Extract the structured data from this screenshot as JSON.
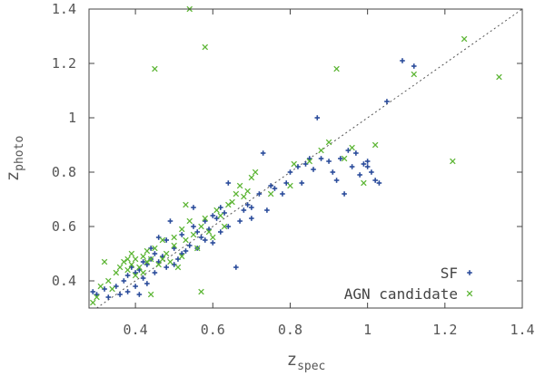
{
  "chart_data": {
    "type": "scatter",
    "xlabel": "z",
    "xlabel_sub": "spec",
    "ylabel": "z",
    "ylabel_sub": "photo",
    "xlim": [
      0.28,
      1.4
    ],
    "ylim": [
      0.3,
      1.4
    ],
    "xticks": [
      "0.4",
      "0.6",
      "0.8",
      "1",
      "1.2",
      "1.4"
    ],
    "yticks": [
      "0.4",
      "0.6",
      "0.8",
      "1",
      "1.2",
      "1.4"
    ],
    "grid": false,
    "reference_line": "y = x (dotted)",
    "legend_position": "bottom-right",
    "colors": {
      "SF": "#2b4c9b",
      "AGN candidate": "#5cb534",
      "reference": "#555555"
    },
    "series": [
      {
        "name": "SF",
        "marker": "plus",
        "points": [
          [
            0.29,
            0.36
          ],
          [
            0.3,
            0.35
          ],
          [
            0.32,
            0.37
          ],
          [
            0.33,
            0.34
          ],
          [
            0.35,
            0.38
          ],
          [
            0.36,
            0.35
          ],
          [
            0.37,
            0.4
          ],
          [
            0.38,
            0.42
          ],
          [
            0.38,
            0.36
          ],
          [
            0.39,
            0.45
          ],
          [
            0.4,
            0.43
          ],
          [
            0.4,
            0.38
          ],
          [
            0.41,
            0.44
          ],
          [
            0.41,
            0.35
          ],
          [
            0.42,
            0.47
          ],
          [
            0.42,
            0.41
          ],
          [
            0.43,
            0.46
          ],
          [
            0.43,
            0.39
          ],
          [
            0.44,
            0.48
          ],
          [
            0.44,
            0.52
          ],
          [
            0.45,
            0.5
          ],
          [
            0.45,
            0.43
          ],
          [
            0.46,
            0.47
          ],
          [
            0.46,
            0.56
          ],
          [
            0.47,
            0.49
          ],
          [
            0.48,
            0.55
          ],
          [
            0.48,
            0.45
          ],
          [
            0.49,
            0.62
          ],
          [
            0.5,
            0.52
          ],
          [
            0.5,
            0.46
          ],
          [
            0.51,
            0.48
          ],
          [
            0.52,
            0.5
          ],
          [
            0.52,
            0.57
          ],
          [
            0.53,
            0.51
          ],
          [
            0.54,
            0.53
          ],
          [
            0.55,
            0.6
          ],
          [
            0.55,
            0.67
          ],
          [
            0.56,
            0.58
          ],
          [
            0.56,
            0.52
          ],
          [
            0.57,
            0.56
          ],
          [
            0.58,
            0.55
          ],
          [
            0.58,
            0.62
          ],
          [
            0.59,
            0.59
          ],
          [
            0.6,
            0.54
          ],
          [
            0.6,
            0.64
          ],
          [
            0.61,
            0.63
          ],
          [
            0.62,
            0.58
          ],
          [
            0.62,
            0.67
          ],
          [
            0.63,
            0.65
          ],
          [
            0.64,
            0.76
          ],
          [
            0.64,
            0.6
          ],
          [
            0.66,
            0.45
          ],
          [
            0.67,
            0.62
          ],
          [
            0.68,
            0.66
          ],
          [
            0.69,
            0.68
          ],
          [
            0.7,
            0.67
          ],
          [
            0.7,
            0.63
          ],
          [
            0.72,
            0.72
          ],
          [
            0.73,
            0.87
          ],
          [
            0.74,
            0.66
          ],
          [
            0.75,
            0.75
          ],
          [
            0.76,
            0.74
          ],
          [
            0.78,
            0.72
          ],
          [
            0.79,
            0.76
          ],
          [
            0.8,
            0.8
          ],
          [
            0.82,
            0.82
          ],
          [
            0.83,
            0.76
          ],
          [
            0.84,
            0.83
          ],
          [
            0.85,
            0.85
          ],
          [
            0.86,
            0.81
          ],
          [
            0.87,
            1.0
          ],
          [
            0.88,
            0.85
          ],
          [
            0.9,
            0.84
          ],
          [
            0.91,
            0.8
          ],
          [
            0.92,
            0.77
          ],
          [
            0.93,
            0.85
          ],
          [
            0.94,
            0.72
          ],
          [
            0.95,
            0.88
          ],
          [
            0.96,
            0.82
          ],
          [
            0.97,
            0.87
          ],
          [
            0.98,
            0.79
          ],
          [
            0.99,
            0.83
          ],
          [
            1.0,
            0.82
          ],
          [
            1.0,
            0.84
          ],
          [
            1.01,
            0.8
          ],
          [
            1.02,
            0.77
          ],
          [
            1.03,
            0.76
          ],
          [
            1.05,
            1.06
          ],
          [
            1.09,
            1.21
          ],
          [
            1.12,
            1.19
          ]
        ]
      },
      {
        "name": "AGN candidate",
        "marker": "cross",
        "points": [
          [
            0.29,
            0.32
          ],
          [
            0.3,
            0.34
          ],
          [
            0.31,
            0.38
          ],
          [
            0.32,
            0.47
          ],
          [
            0.33,
            0.4
          ],
          [
            0.34,
            0.37
          ],
          [
            0.35,
            0.43
          ],
          [
            0.36,
            0.45
          ],
          [
            0.37,
            0.47
          ],
          [
            0.38,
            0.48
          ],
          [
            0.38,
            0.44
          ],
          [
            0.39,
            0.5
          ],
          [
            0.39,
            0.46
          ],
          [
            0.4,
            0.48
          ],
          [
            0.4,
            0.42
          ],
          [
            0.41,
            0.45
          ],
          [
            0.42,
            0.49
          ],
          [
            0.42,
            0.43
          ],
          [
            0.43,
            0.47
          ],
          [
            0.43,
            0.51
          ],
          [
            0.44,
            0.35
          ],
          [
            0.44,
            0.48
          ],
          [
            0.45,
            1.18
          ],
          [
            0.45,
            0.52
          ],
          [
            0.46,
            0.46
          ],
          [
            0.47,
            0.48
          ],
          [
            0.47,
            0.55
          ],
          [
            0.48,
            0.5
          ],
          [
            0.49,
            0.47
          ],
          [
            0.5,
            0.53
          ],
          [
            0.5,
            0.56
          ],
          [
            0.51,
            0.45
          ],
          [
            0.52,
            0.49
          ],
          [
            0.52,
            0.59
          ],
          [
            0.53,
            0.68
          ],
          [
            0.53,
            0.55
          ],
          [
            0.54,
            1.4
          ],
          [
            0.54,
            0.62
          ],
          [
            0.55,
            0.57
          ],
          [
            0.56,
            0.52
          ],
          [
            0.57,
            0.6
          ],
          [
            0.57,
            0.36
          ],
          [
            0.58,
            1.26
          ],
          [
            0.58,
            0.63
          ],
          [
            0.59,
            0.58
          ],
          [
            0.6,
            0.56
          ],
          [
            0.61,
            0.66
          ],
          [
            0.62,
            0.64
          ],
          [
            0.63,
            0.6
          ],
          [
            0.64,
            0.68
          ],
          [
            0.65,
            0.69
          ],
          [
            0.66,
            0.72
          ],
          [
            0.67,
            0.75
          ],
          [
            0.68,
            0.71
          ],
          [
            0.69,
            0.73
          ],
          [
            0.7,
            0.78
          ],
          [
            0.71,
            0.8
          ],
          [
            0.75,
            0.72
          ],
          [
            0.8,
            0.75
          ],
          [
            0.81,
            0.83
          ],
          [
            0.85,
            0.84
          ],
          [
            0.88,
            0.88
          ],
          [
            0.9,
            0.91
          ],
          [
            0.92,
            1.18
          ],
          [
            0.94,
            0.85
          ],
          [
            0.96,
            0.89
          ],
          [
            0.99,
            0.76
          ],
          [
            1.02,
            0.9
          ],
          [
            1.12,
            1.16
          ],
          [
            1.22,
            0.84
          ],
          [
            1.25,
            1.29
          ],
          [
            1.34,
            1.15
          ]
        ]
      }
    ]
  }
}
